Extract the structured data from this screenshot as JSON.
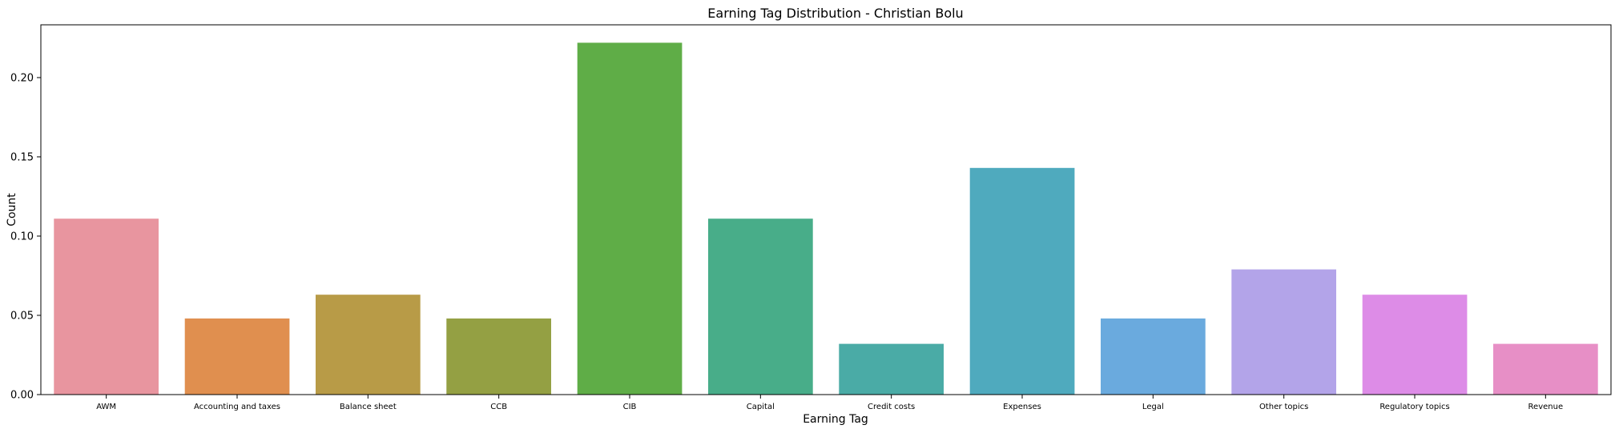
{
  "chart_data": {
    "type": "bar",
    "title": "Earning Tag Distribution - Christian Bolu",
    "xlabel": "Earning Tag",
    "ylabel": "Count",
    "ylim": [
      0,
      0.2333
    ],
    "yticks": [
      0.0,
      0.05,
      0.1,
      0.15,
      0.2
    ],
    "ytick_labels": [
      "0.00",
      "0.05",
      "0.10",
      "0.15",
      "0.20"
    ],
    "grid": false,
    "categories": [
      "AWM",
      "Accounting and taxes",
      "Balance sheet",
      "CCB",
      "CIB",
      "Capital",
      "Credit costs",
      "Expenses",
      "Legal",
      "Other topics",
      "Regulatory topics",
      "Revenue"
    ],
    "values": [
      0.111,
      0.048,
      0.063,
      0.048,
      0.222,
      0.111,
      0.032,
      0.143,
      0.048,
      0.079,
      0.063,
      0.032
    ],
    "colors": [
      "#e8959f",
      "#e08f4f",
      "#b89b47",
      "#94a043",
      "#5fad47",
      "#48ad89",
      "#4aaba6",
      "#4faabe",
      "#6aaade",
      "#b3a4e9",
      "#dd8ce7",
      "#e78fc6"
    ]
  }
}
